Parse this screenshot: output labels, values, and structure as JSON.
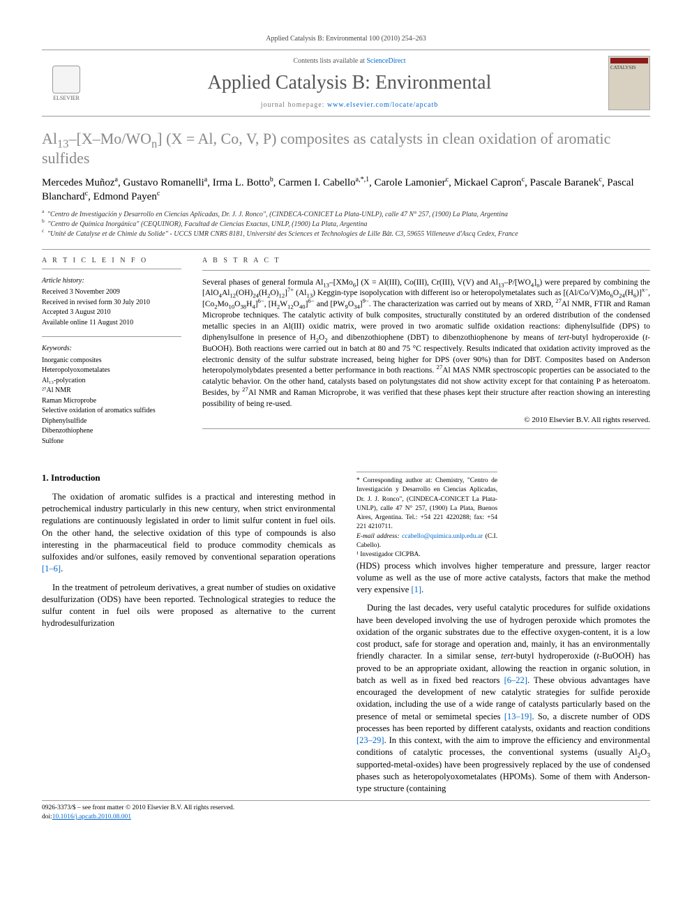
{
  "journal": {
    "header_citation": "Applied Catalysis B: Environmental 100 (2010) 254–263",
    "contents_line_prefix": "Contents lists available at ",
    "contents_link": "ScienceDirect",
    "name": "Applied Catalysis B: Environmental",
    "homepage_prefix": "journal homepage: ",
    "homepage_url": "www.elsevier.com/locate/apcatb",
    "elsevier_label": "ELSEVIER",
    "cover_word": "CATALYSIS"
  },
  "article": {
    "title_html": "Al<sub>13</sub>–[X–Mo/WO<sub>n</sub>] (X = Al, Co, V, P) composites as catalysts in clean oxidation of aromatic sulfides",
    "authors_html": "Mercedes Muñoz<sup>a</sup>, Gustavo Romanelli<sup>a</sup>, Irma L. Botto<sup>b</sup>, Carmen I. Cabello<sup>a,*,1</sup>, Carole Lamonier<sup>c</sup>, Mickael Capron<sup>c</sup>, Pascale Baranek<sup>c</sup>, Pascal Blanchard<sup>c</sup>, Edmond Payen<sup>c</sup>",
    "affiliations": [
      {
        "sup": "a",
        "text": "\"Centro de Investigación y Desarrollo en Ciencias Aplicadas, Dr. J. J. Ronco\", (CINDECA-CONICET La Plata-UNLP), calle 47 N° 257, (1900) La Plata, Argentina"
      },
      {
        "sup": "b",
        "text": "\"Centro de Química Inorgánica\" (CEQUINOR), Facultad de Ciencias Exactas, UNLP, (1900) La Plata, Argentina"
      },
      {
        "sup": "c",
        "text": "\"Unité de Catalyse et de Chimie du Solide\" - UCCS UMR CNRS 8181, Université des Sciences et Technologies de Lille Bât. C3, 59655 Villeneuve d'Ascq Cedex, France"
      }
    ]
  },
  "info": {
    "heading": "A R T I C L E   I N F O",
    "history_heading": "Article history:",
    "history": [
      "Received 3 November 2009",
      "Received in revised form 30 July 2010",
      "Accepted 3 August 2010",
      "Available online 11 August 2010"
    ],
    "keywords_heading": "Keywords:",
    "keywords": [
      "Inorganic composites",
      "Heteropolyoxometalates",
      "Al₁₃-polycation",
      "²⁷Al NMR",
      "Raman Microprobe",
      "Selective oxidation of aromatics sulfides",
      "Diphenylsulfide",
      "Dibenzothiophene",
      "Sulfone"
    ]
  },
  "abstract": {
    "heading": "A B S T R A C T",
    "text_html": "Several phases of general formula Al<sub>13</sub>–[XMo<sub>6</sub>] (X = Al(III), Co(III), Cr(III), V(V) and Al<sub>13</sub>–P/[WO<sub>4</sub>]<sub>n</sub>) were prepared by combining the [AlO<sub>4</sub>Al<sub>12</sub>(OH)<sub>24</sub>(H<sub>2</sub>O)<sub>12</sub>]<sup>7+</sup> (Al<sub>13</sub>) Keggin-type isopolycation with different iso or heteropolymetalates such as [(Al/Co/V)Mo<sub>6</sub>O<sub>24</sub>(H<sub>6</sub>)]<sup>x−</sup>, [Co<sub>2</sub>Mo<sub>10</sub>O<sub>38</sub>H<sub>4</sub>]<sup>6−</sup>, [H<sub>2</sub>W<sub>12</sub>O<sub>40</sub>]<sup>6−</sup> and [PW<sub>9</sub>O<sub>34</sub>]<sup>9−</sup>. The characterization was carried out by means of XRD, <sup>27</sup>Al NMR, FTIR and Raman Microprobe techniques. The catalytic activity of bulk composites, structurally constituted by an ordered distribution of the condensed metallic species in an Al(III) oxidic matrix, were proved in two aromatic sulfide oxidation reactions: diphenylsulfide (DPS) to diphenylsulfone in presence of H<sub>2</sub>O<sub>2</sub> and dibenzothiophene (DBT) to dibenzothiophenone by means of <em>tert</em>-butyl hydroperoxide (<em>t</em>-BuOOH). Both reactions were carried out in batch at 80 and 75 °C respectively. Results indicated that oxidation activity improved as the electronic density of the sulfur substrate increased, being higher for DPS (over 90%) than for DBT. Composites based on Anderson heteropolymolybdates presented a better performance in both reactions. <sup>27</sup>Al MAS NMR spectroscopic properties can be associated to the catalytic behavior. On the other hand, catalysts based on polytungstates did not show activity except for that containing P as heteroatom. Besides, by <sup>27</sup>Al NMR and Raman Microprobe, it was verified that these phases kept their structure after reaction showing an interesting possibility of being re-used.",
    "copyright": "© 2010 Elsevier B.V. All rights reserved."
  },
  "body": {
    "section1_heading": "1.  Introduction",
    "p1_html": "The oxidation of aromatic sulfides is a practical and interesting method in petrochemical industry particularly in this new century, when strict environmental regulations are continuously legislated in order to limit sulfur content in fuel oils. On the other hand, the selective oxidation of this type of compounds is also interesting in the pharmaceutical field to produce commodity chemicals as sulfoxides and/or sulfones, easily removed by conventional separation operations <span class=\"ref-link\">[1–6]</span>.",
    "p2_html": "In the treatment of petroleum derivatives, a great number of studies on oxidative desulfurization (ODS) have been reported. Technological strategies to reduce the sulfur content in fuel oils were proposed as alternative to the current hydrodesulfurization",
    "p3_html": "(HDS) process which involves higher temperature and pressure, larger reactor volume as well as the use of more active catalysts, factors that make the method very expensive <span class=\"ref-link\">[1]</span>.",
    "p4_html": "During the last decades, very useful catalytic procedures for sulfide oxidations have been developed involving the use of hydrogen peroxide which promotes the oxidation of the organic substrates due to the effective oxygen-content, it is a low cost product, safe for storage and operation and, mainly, it has an environmentally friendly character. In a similar sense, <em>tert</em>-butyl hydroperoxide (<em>t</em>-BuOOH) has proved to be an appropriate oxidant, allowing the reaction in organic solution, in batch as well as in fixed bed reactors <span class=\"ref-link\">[6–22]</span>. These obvious advantages have encouraged the development of new catalytic strategies for sulfide peroxide oxidation, including the use of a wide range of catalysts particularly based on the presence of metal or semimetal species <span class=\"ref-link\">[13–19]</span>. So, a discrete number of ODS processes has been reported by different catalysts, oxidants and reaction conditions <span class=\"ref-link\">[23–29]</span>. In this context, with the aim to improve the efficiency and environmental conditions of catalytic processes, the conventional systems (usually Al<sub>2</sub>O<sub>3</sub> supported-metal-oxides) have been progressively replaced by the use of condensed phases such as heteropolyoxometalates (HPOMs). Some of them with Anderson-type structure (containing"
  },
  "footnotes": {
    "corr_html": "* Corresponding author at: Chemistry, \"Centro de Investigación y Desarrollo en Ciencias Aplicadas, Dr. J. J. Ronco\", (CINDECA-CONICET La Plata-UNLP), calle 47 N° 257, (1900) La Plata, Buenos Aires, Argentina. Tel.: +54 221 4220288; fax: +54 221 4210711.",
    "email_label": "E-mail address:",
    "email": "ccabello@quimica.unlp.edu.ar",
    "email_person": "(C.I. Cabello).",
    "note1": "¹ Investigador CICPBA."
  },
  "footer": {
    "issn_line": "0926-3373/$ – see front matter © 2010 Elsevier B.V. All rights reserved.",
    "doi_label": "doi:",
    "doi": "10.1016/j.apcatb.2010.08.001"
  },
  "colors": {
    "link": "#0066cc",
    "title_gray": "#888888",
    "rule": "#999999"
  }
}
